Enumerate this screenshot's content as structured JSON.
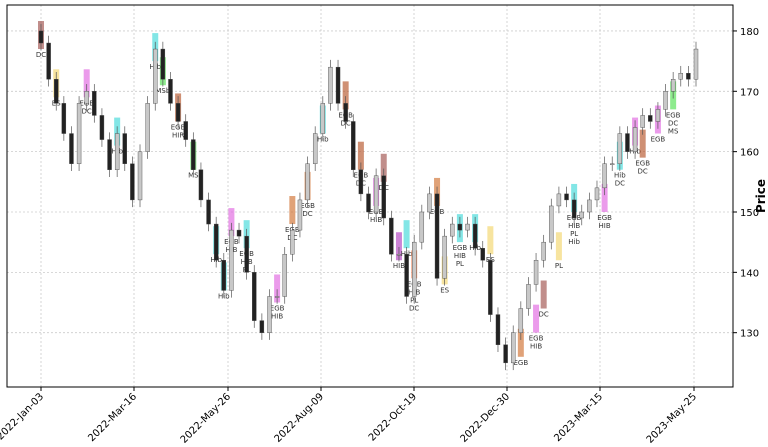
{
  "chart_data": {
    "type": "candlestick",
    "ylabel": "Price",
    "xlabel": "",
    "ylim": [
      121,
      184.3
    ],
    "yticks": [
      130,
      140,
      150,
      160,
      170,
      180
    ],
    "xtick_labels": [
      "2022-Jan-03",
      "2022-Mar-16",
      "2022-May-26",
      "2022-Aug-09",
      "2022-Oct-19",
      "2022-Dec-30",
      "2023-Mar-15",
      "2023-May-25"
    ],
    "grid": true,
    "y_axis_side": "right",
    "closes": [
      178,
      172,
      168,
      163,
      158,
      168,
      170,
      166,
      162,
      157,
      163,
      158,
      152,
      160,
      168,
      177,
      172,
      168,
      165,
      162,
      157,
      152,
      148,
      142,
      137,
      147,
      146,
      140,
      132,
      130,
      136,
      136,
      143,
      147,
      152,
      158,
      163,
      168,
      174,
      168,
      165,
      157,
      153,
      150,
      156,
      149,
      143,
      143,
      136,
      145,
      150,
      153,
      139,
      146,
      148,
      147,
      148,
      144,
      142,
      133,
      128,
      125,
      130,
      134,
      138,
      142,
      145,
      151,
      153,
      152,
      149,
      150,
      152,
      154,
      158,
      158,
      163,
      160,
      164,
      166,
      165,
      167,
      170,
      172,
      173,
      172,
      177
    ],
    "colors": {
      "up": "#c8c8c8",
      "down": "#222222",
      "grid": "#cccccc"
    },
    "annotations": [
      {
        "at": 0,
        "price": 178,
        "label": "DC",
        "color": "#a0524d"
      },
      {
        "at": 2,
        "price": 170,
        "label": "ES",
        "color": "#f2d56b"
      },
      {
        "at": 6,
        "price": 170,
        "label": "EGB\nDC",
        "color": "#e066e0"
      },
      {
        "at": 10,
        "price": 162,
        "label": "Hib",
        "color": "#40d8d8"
      },
      {
        "at": 15,
        "price": 176,
        "label": "Hib",
        "color": "#40d8d8"
      },
      {
        "at": 16,
        "price": 172,
        "label": "MSb",
        "color": "#50e050"
      },
      {
        "at": 18,
        "price": 166,
        "label": "EGB\nHIR",
        "color": "#b5542a"
      },
      {
        "at": 20,
        "price": 158,
        "label": "MS",
        "color": "#50e050"
      },
      {
        "at": 23,
        "price": 144,
        "label": "Hib",
        "color": "#40d8d8"
      },
      {
        "at": 25,
        "price": 147,
        "label": "EGB\nHIB",
        "color": "#e066e0"
      },
      {
        "at": 27,
        "price": 145,
        "label": "EGB\nHIB\nPL",
        "color": "#40d8d8"
      },
      {
        "at": 24,
        "price": 138,
        "label": "Hib",
        "color": "#40d8d8"
      },
      {
        "at": 31,
        "price": 136,
        "label": "EGB\nHIB",
        "color": "#e066e0"
      },
      {
        "at": 33,
        "price": 149,
        "label": "EGB\nDC",
        "color": "#d07030"
      },
      {
        "at": 35,
        "price": 153,
        "label": "EGB\nDC",
        "color": "#d07030"
      },
      {
        "at": 37,
        "price": 164,
        "label": "Hib",
        "color": "#40d8d8"
      },
      {
        "at": 40,
        "price": 168,
        "label": "EGB\nDC",
        "color": "#b5542a"
      },
      {
        "at": 42,
        "price": 158,
        "label": "EGB\nDC",
        "color": "#b5542a"
      },
      {
        "at": 44,
        "price": 152,
        "label": "EGB\nHIB",
        "color": "#e066e0"
      },
      {
        "at": 45,
        "price": 156,
        "label": "DC",
        "color": "#a0524d"
      },
      {
        "at": 47,
        "price": 143,
        "label": "HIB",
        "color": "#b040c0"
      },
      {
        "at": 48,
        "price": 145,
        "label": "Hib",
        "color": "#40d8d8"
      },
      {
        "at": 49,
        "price": 140,
        "label": "EGB\nHIB\nPL\nDC",
        "color": "#f08050"
      },
      {
        "at": 52,
        "price": 152,
        "label": "EGB",
        "color": "#d07030"
      },
      {
        "at": 53,
        "price": 139,
        "label": "ES",
        "color": "#f2d56b"
      },
      {
        "at": 55,
        "price": 146,
        "label": "EGB\nHIB\nPL",
        "color": "#40d8d8"
      },
      {
        "at": 57,
        "price": 146,
        "label": "Hib",
        "color": "#40d8d8"
      },
      {
        "at": 59,
        "price": 144,
        "label": "ES",
        "color": "#f2d56b"
      },
      {
        "at": 63,
        "price": 127,
        "label": "EGB",
        "color": "#d07030"
      },
      {
        "at": 65,
        "price": 131,
        "label": "EGB\nHIB",
        "color": "#e066e0"
      },
      {
        "at": 66,
        "price": 135,
        "label": "DC",
        "color": "#a0524d"
      },
      {
        "at": 68,
        "price": 143,
        "label": "PL",
        "color": "#f2d56b"
      },
      {
        "at": 70,
        "price": 151,
        "label": "EGB\nHIB\nPL\nHib",
        "color": "#40d8d8"
      },
      {
        "at": 74,
        "price": 151,
        "label": "EGB\nHIB",
        "color": "#e066e0"
      },
      {
        "at": 76,
        "price": 158,
        "label": "Hib\nDC",
        "color": "#40d8d8"
      },
      {
        "at": 78,
        "price": 162,
        "label": "Hib",
        "color": "#e066e0"
      },
      {
        "at": 79,
        "price": 160,
        "label": "EGB\nDC",
        "color": "#b5542a"
      },
      {
        "at": 81,
        "price": 164,
        "label": "EGB",
        "color": "#e066e0"
      },
      {
        "at": 83,
        "price": 168,
        "label": "EGB\nDC\nMS",
        "color": "#50e050"
      }
    ]
  }
}
